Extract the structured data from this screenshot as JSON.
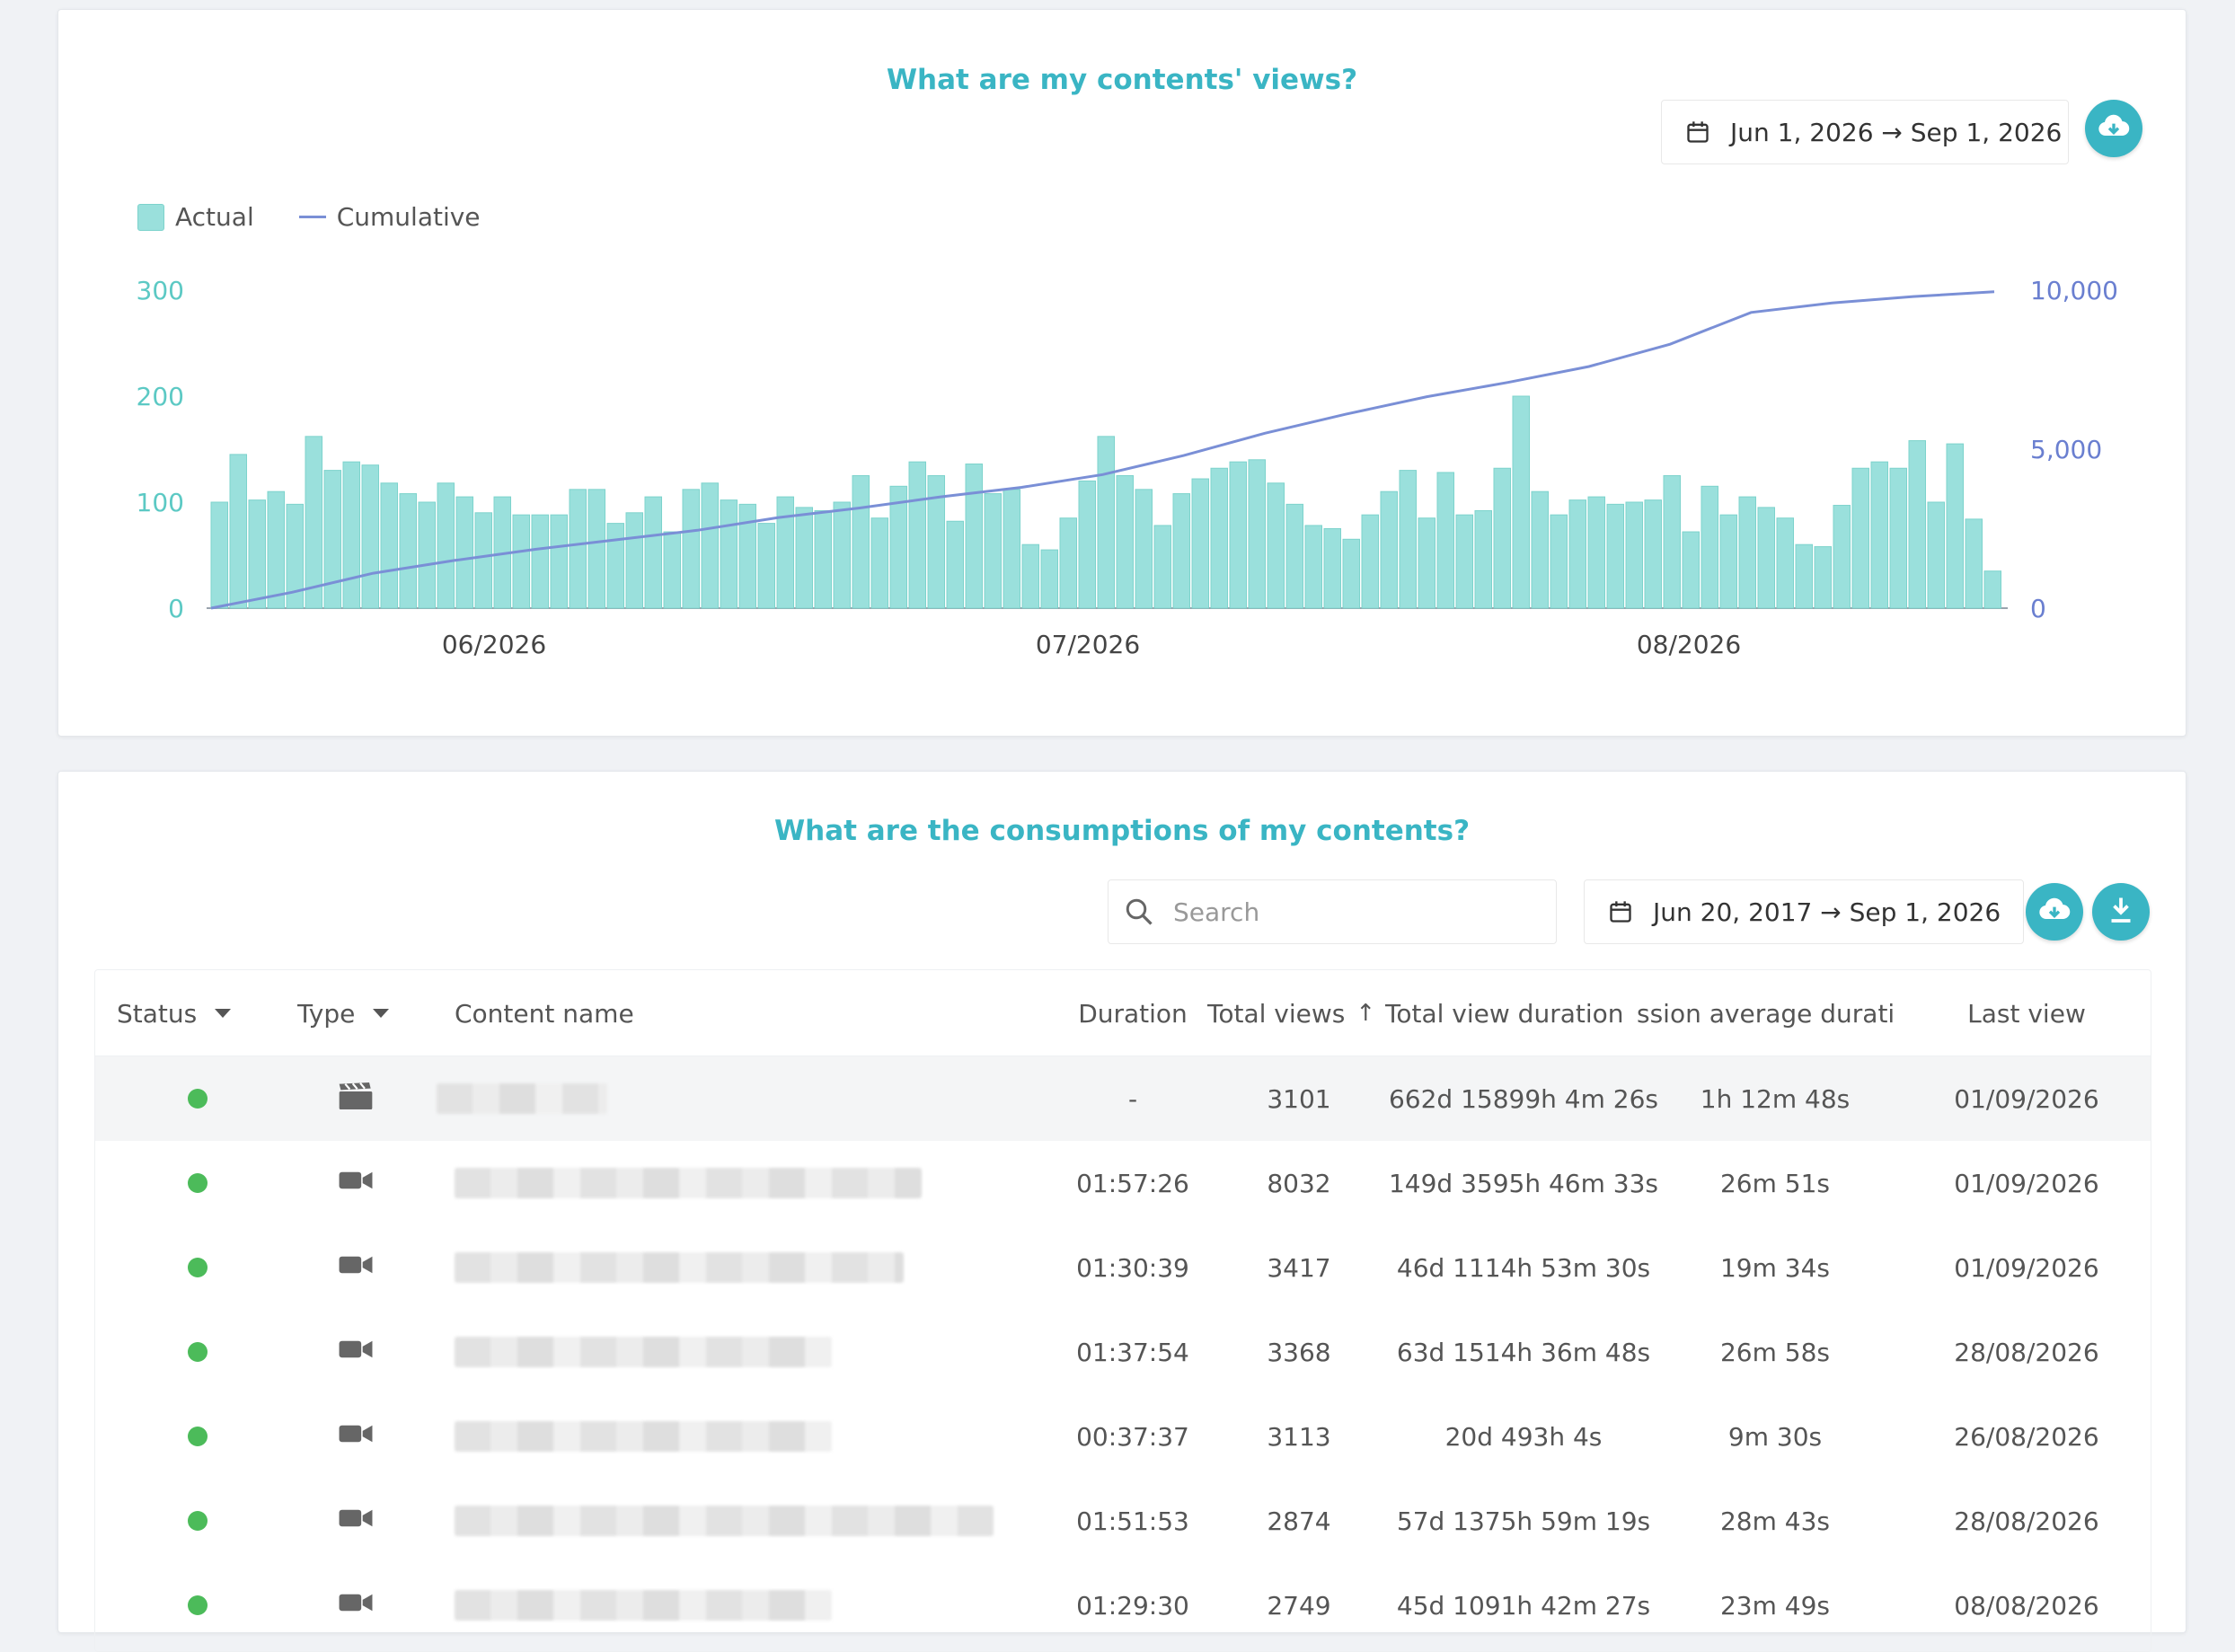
{
  "views_card": {
    "title": "What are my contents' views?",
    "date_range": "Jun 1, 2026 → Sep 1, 2026",
    "legend": {
      "actual": "Actual",
      "cumulative": "Cumulative"
    }
  },
  "chart_data": {
    "type": "bar+line",
    "series": [
      {
        "name": "Actual",
        "type": "bar",
        "axis": "left",
        "color": "#9ae0dc",
        "values": [
          100,
          145,
          102,
          110,
          98,
          162,
          130,
          138,
          135,
          118,
          108,
          100,
          118,
          105,
          90,
          105,
          88,
          88,
          88,
          112,
          112,
          80,
          90,
          105,
          72,
          112,
          118,
          102,
          98,
          80,
          105,
          95,
          92,
          100,
          125,
          85,
          115,
          138,
          125,
          82,
          136,
          108,
          112,
          60,
          55,
          85,
          120,
          162,
          125,
          112,
          78,
          108,
          122,
          132,
          138,
          140,
          118,
          98,
          78,
          75,
          65,
          88,
          110,
          130,
          85,
          128,
          88,
          92,
          132,
          200,
          110,
          88,
          102,
          105,
          98,
          100,
          102,
          125,
          72,
          115,
          88,
          105,
          95,
          85,
          60,
          58,
          97,
          132,
          138,
          132,
          158,
          100,
          155,
          84,
          35
        ]
      },
      {
        "name": "Cumulative",
        "type": "line",
        "axis": "right",
        "color": "#7a8fd6",
        "points": [
          [
            0,
            0
          ],
          [
            5,
            500
          ],
          [
            10,
            1100
          ],
          [
            15,
            1500
          ],
          [
            20,
            1850
          ],
          [
            25,
            2150
          ],
          [
            30,
            2450
          ],
          [
            35,
            2850
          ],
          [
            40,
            3150
          ],
          [
            45,
            3500
          ],
          [
            50,
            3800
          ],
          [
            55,
            4200
          ],
          [
            60,
            4800
          ],
          [
            65,
            5500
          ],
          [
            70,
            6100
          ],
          [
            75,
            6650
          ],
          [
            80,
            7100
          ],
          [
            85,
            7600
          ],
          [
            90,
            8300
          ],
          [
            95,
            9300
          ],
          [
            100,
            9600
          ],
          [
            105,
            9800
          ],
          [
            110,
            9950
          ]
        ]
      }
    ],
    "x_ticks": [
      "06/2026",
      "07/2026",
      "08/2026"
    ],
    "y_left": {
      "ticks": [
        "0",
        "100",
        "200",
        "300"
      ],
      "range": [
        0,
        300
      ]
    },
    "y_right": {
      "ticks": [
        "0",
        "5,000",
        "10,000"
      ],
      "range": [
        0,
        10000
      ]
    },
    "legend_position": "top-left"
  },
  "consumption_card": {
    "title": "What are the consumptions of my contents?",
    "search_placeholder": "Search",
    "date_range": "Jun 20, 2017 → Sep 1, 2026",
    "columns": {
      "status": "Status",
      "type": "Type",
      "content_name": "Content name",
      "duration": "Duration",
      "total_views": "Total views",
      "total_view_duration": "Total view duration",
      "session_avg": "ssion average durati",
      "last_view": "Last view"
    },
    "rows": [
      {
        "type": "film",
        "duration": "-",
        "views": "3101",
        "total_duration": "662d 15899h 4m 26s",
        "avg": "1h 12m 48s",
        "last": "01/09/2026"
      },
      {
        "type": "video",
        "duration": "01:57:26",
        "views": "8032",
        "total_duration": "149d 3595h 46m 33s",
        "avg": "26m 51s",
        "last": "01/09/2026"
      },
      {
        "type": "video",
        "duration": "01:30:39",
        "views": "3417",
        "total_duration": "46d 1114h 53m 30s",
        "avg": "19m 34s",
        "last": "01/09/2026"
      },
      {
        "type": "video",
        "duration": "01:37:54",
        "views": "3368",
        "total_duration": "63d 1514h 36m 48s",
        "avg": "26m 58s",
        "last": "28/08/2026"
      },
      {
        "type": "video",
        "duration": "00:37:37",
        "views": "3113",
        "total_duration": "20d 493h 4s",
        "avg": "9m 30s",
        "last": "26/08/2026"
      },
      {
        "type": "video",
        "duration": "01:51:53",
        "views": "2874",
        "total_duration": "57d 1375h 59m 19s",
        "avg": "28m 43s",
        "last": "28/08/2026"
      },
      {
        "type": "video",
        "duration": "01:29:30",
        "views": "2749",
        "total_duration": "45d 1091h 42m 27s",
        "avg": "23m 49s",
        "last": "08/08/2026"
      }
    ]
  }
}
